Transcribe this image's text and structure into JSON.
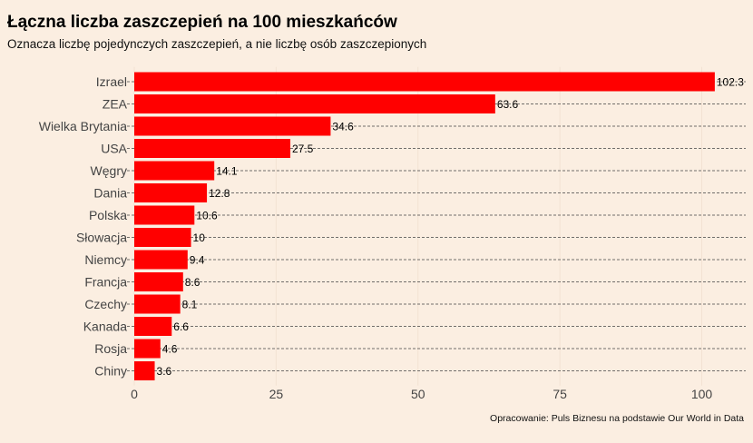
{
  "chart_data": {
    "type": "bar",
    "orientation": "horizontal",
    "title": "Łączna liczba zaszczepień na 100 mieszkańców",
    "subtitle": "Oznacza liczbę pojedynczych zaszczepień, a nie liczbę osób zaszczepionych",
    "caption": "Opracowanie: Puls Biznesu na podstawie Our World in Data",
    "categories": [
      "Izrael",
      "ZEA",
      "Wielka Brytania",
      "USA",
      "Węgry",
      "Dania",
      "Polska",
      "Słowacja",
      "Niemcy",
      "Francja",
      "Czechy",
      "Kanada",
      "Rosja",
      "Chiny"
    ],
    "values": [
      102.3,
      63.6,
      34.6,
      27.5,
      14.1,
      12.8,
      10.6,
      10,
      9.4,
      8.6,
      8.1,
      6.6,
      4.6,
      3.6
    ],
    "value_labels": [
      "102.3",
      "63.6",
      "34.6",
      "27.5",
      "14.1",
      "12.8",
      "10.6",
      "10",
      "9.4",
      "8.6",
      "8.1",
      "6.6",
      "4.6",
      "3.6"
    ],
    "xticks": [
      0,
      25,
      50,
      75,
      100
    ],
    "xtick_labels": [
      "0",
      "25",
      "50",
      "75",
      "100"
    ],
    "xlim": [
      0,
      102.3
    ],
    "grid": "horizontal dashed lines at categories, faint vertical lines",
    "colors": {
      "bar": "#ff0000",
      "background": "#fbeee1",
      "gridline": "#444444"
    }
  }
}
